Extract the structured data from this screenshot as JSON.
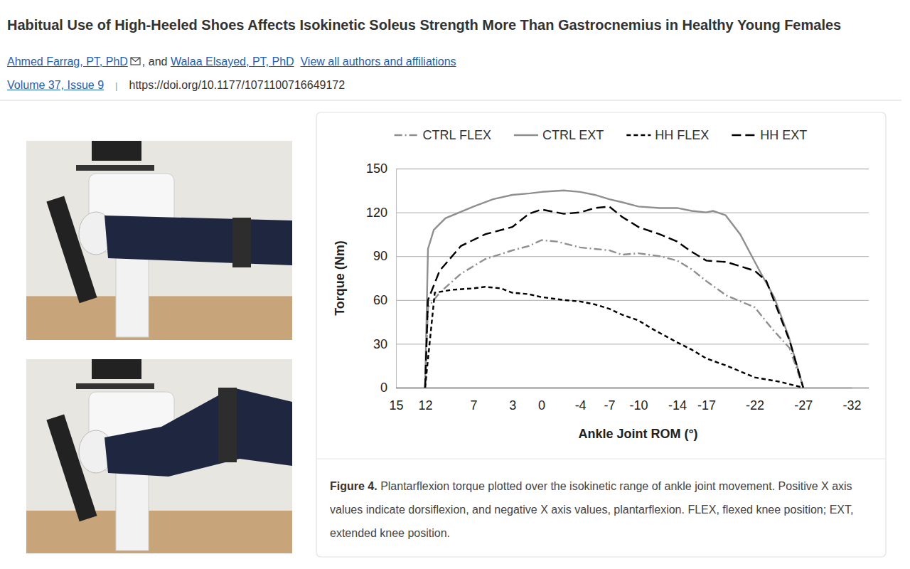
{
  "paper": {
    "title": "Habitual Use of High-Heeled Shoes Affects Isokinetic Soleus Strength More Than Gastrocnemius in Healthy Young Females",
    "authors": [
      "Ahmed Farrag, PT, PhD",
      "Walaa Elsayed, PT, PhD"
    ],
    "author_joiner": ", and",
    "authors_link": "View all authors and affiliations",
    "issue": "Volume 37, Issue 9",
    "separator": "|",
    "doi": "https://doi.org/10.1177/1071100716649172",
    "figure_label": "Figure 4.",
    "caption": "Plantarflexion torque plotted over the isokinetic range of ankle joint movement. Positive X axis values indicate dorsiflexion, and negative X axis values, plantarflexion. FLEX, flexed knee position; EXT, extended knee position."
  },
  "chart_data": {
    "type": "line",
    "x_label": "Ankle Joint ROM (°)",
    "y_label": "Torque (Nm)",
    "xlim": [
      15,
      -32
    ],
    "xticks": [
      15,
      12,
      7,
      3,
      0,
      -4,
      -7,
      -10,
      -14,
      -17,
      -22,
      -27,
      -32
    ],
    "ylim": [
      0,
      150
    ],
    "yticks": [
      0,
      30,
      60,
      90,
      120,
      150
    ],
    "grid": true,
    "legend": "top",
    "series": [
      {
        "name": "CTRL FLEX",
        "color": "#8f8f8f",
        "line_style": "dash-dot",
        "x": [
          12,
          11.7,
          10.5,
          8.3,
          5.8,
          3,
          1.3,
          0,
          -1.6,
          -4,
          -5.5,
          -7,
          -8.3,
          -10,
          -12.2,
          -14,
          -15.5,
          -17,
          -19.1,
          -22,
          -23.7,
          -25.6,
          -27
        ],
        "values": [
          0,
          55,
          65,
          78,
          88,
          94,
          97,
          101,
          100,
          96,
          95,
          94,
          91,
          92,
          90,
          87,
          81,
          73,
          63,
          55,
          41,
          27,
          0
        ]
      },
      {
        "name": "CTRL EXT",
        "color": "#8f8f8f",
        "line_style": "solid",
        "x": [
          12,
          11.7,
          11.1,
          9.9,
          7,
          5,
          3,
          1.2,
          0,
          -2.3,
          -4,
          -5.5,
          -7,
          -8.3,
          -10,
          -12.2,
          -14,
          -15.5,
          -17,
          -17.7,
          -19,
          -20.5,
          -21.7,
          -22.5,
          -24,
          -25.5,
          -27
        ],
        "values": [
          0,
          95,
          108,
          116,
          124,
          129,
          132,
          133,
          134,
          135,
          134,
          132,
          129,
          127,
          124,
          123,
          123,
          121,
          120,
          121,
          118,
          105,
          90,
          80,
          62,
          35,
          0
        ]
      },
      {
        "name": "HH FLEX",
        "color": "#000000",
        "line_style": "dashed",
        "x": [
          12,
          11,
          9.2,
          7,
          5.8,
          4.2,
          3,
          1.3,
          0,
          -2.3,
          -4,
          -5.5,
          -7,
          -8.3,
          -10,
          -11.5,
          -14,
          -15.5,
          -17,
          -19.1,
          -22,
          -24.6,
          -27
        ],
        "values": [
          0,
          65,
          67,
          68,
          69,
          68,
          65,
          64,
          62,
          60,
          59,
          57,
          54,
          50,
          46,
          40,
          31,
          26,
          20,
          15,
          7,
          4,
          0
        ]
      },
      {
        "name": "HH EXT",
        "color": "#000000",
        "line_style": "long-dash",
        "x": [
          12,
          11.7,
          10.5,
          8.3,
          5.8,
          3,
          1.3,
          0,
          -2.3,
          -4,
          -5.5,
          -7,
          -8.3,
          -10,
          -12.2,
          -14,
          -15.5,
          -17,
          -19.1,
          -22,
          -23.2,
          -24.2,
          -25.6,
          -27
        ],
        "values": [
          0,
          60,
          80,
          97,
          105,
          110,
          119,
          122,
          119,
          120,
          123,
          124,
          117,
          110,
          105,
          100,
          93,
          87,
          86,
          80,
          73,
          56,
          32,
          0
        ]
      }
    ]
  }
}
